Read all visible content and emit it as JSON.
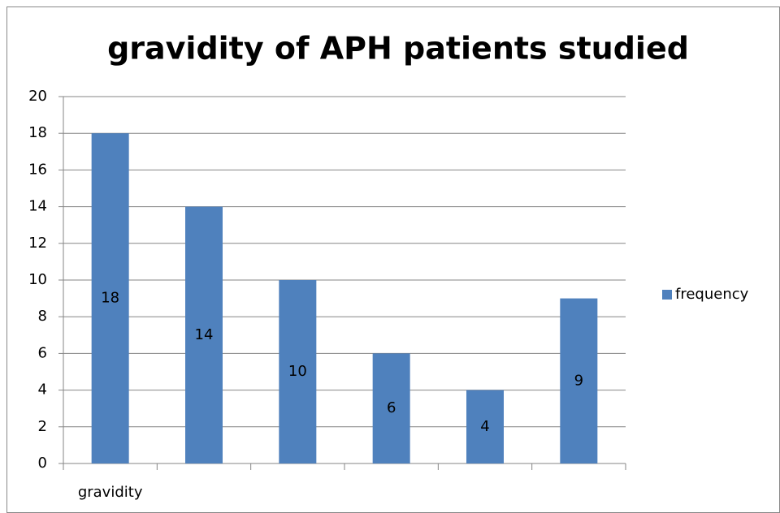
{
  "chart_data": {
    "type": "bar",
    "title": "gravidity of APH patients studied",
    "categories": [
      "gravidity",
      null,
      null,
      null,
      null,
      null
    ],
    "series": [
      {
        "name": "frequency",
        "color": "#4f81bd",
        "values": [
          18,
          14,
          10,
          6,
          4,
          9
        ]
      }
    ],
    "ylim": [
      0,
      20
    ],
    "yticks": [
      0,
      2,
      4,
      6,
      8,
      10,
      12,
      14,
      16,
      18,
      20
    ],
    "grid": true,
    "legend": "right"
  }
}
